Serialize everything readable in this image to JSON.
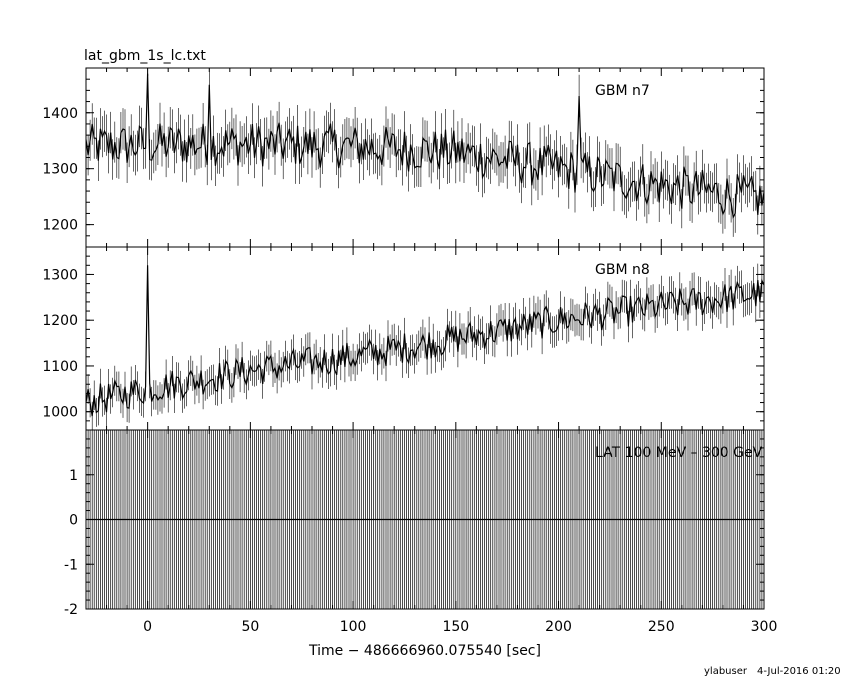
{
  "file_label": "lat_gbm_1s_lc.txt",
  "footer": {
    "user": "ylabuser",
    "date": "4-Jul-2016 01:20"
  },
  "chart_data": [
    {
      "type": "line",
      "panel": "top",
      "annotation": "GBM n7",
      "ylim": [
        1160,
        1480
      ],
      "yticks": [
        1200,
        1300,
        1400
      ],
      "xlim": [
        -30,
        300
      ],
      "xticks": [
        0,
        50,
        100,
        150,
        200,
        250,
        300
      ],
      "x_step": 1,
      "baseline_segments": [
        [
          -30,
          1340
        ],
        [
          30,
          1345
        ],
        [
          100,
          1340
        ],
        [
          150,
          1330
        ],
        [
          200,
          1300
        ],
        [
          250,
          1270
        ],
        [
          300,
          1245
        ]
      ],
      "noise_amplitude": 40,
      "spikes": [
        {
          "x": 0,
          "y": 1470
        },
        {
          "x": 30,
          "y": 1450
        },
        {
          "x": 210,
          "y": 1430
        }
      ]
    },
    {
      "type": "line",
      "panel": "middle",
      "annotation": "GBM n8",
      "ylim": [
        960,
        1360
      ],
      "yticks": [
        1000,
        1100,
        1200,
        1300
      ],
      "xlim": [
        -30,
        300
      ],
      "xticks": [
        0,
        50,
        100,
        150,
        200,
        250,
        300
      ],
      "x_step": 1,
      "baseline_segments": [
        [
          -30,
          1020
        ],
        [
          0,
          1050
        ],
        [
          50,
          1090
        ],
        [
          100,
          1120
        ],
        [
          150,
          1160
        ],
        [
          200,
          1200
        ],
        [
          250,
          1230
        ],
        [
          300,
          1260
        ]
      ],
      "noise_amplitude": 35,
      "spikes": [
        {
          "x": 0,
          "y": 1320
        }
      ]
    },
    {
      "type": "line",
      "panel": "bottom",
      "annotation": "LAT 100 MeV – 300 GeV",
      "ylim": [
        -2,
        2
      ],
      "yticks": [
        -2,
        -1,
        0,
        1
      ],
      "xlim": [
        -30,
        300
      ],
      "xticks": [
        -50,
        0,
        50,
        100,
        150,
        200,
        250,
        300
      ],
      "xticklabels": [
        "",
        "0",
        "50",
        "100",
        "150",
        "200",
        "250",
        "300"
      ],
      "xlabel": "Time − 486666960.075540 [sec]",
      "x_step": 1,
      "values_constant": 0,
      "errorbar_full_height": true
    }
  ]
}
